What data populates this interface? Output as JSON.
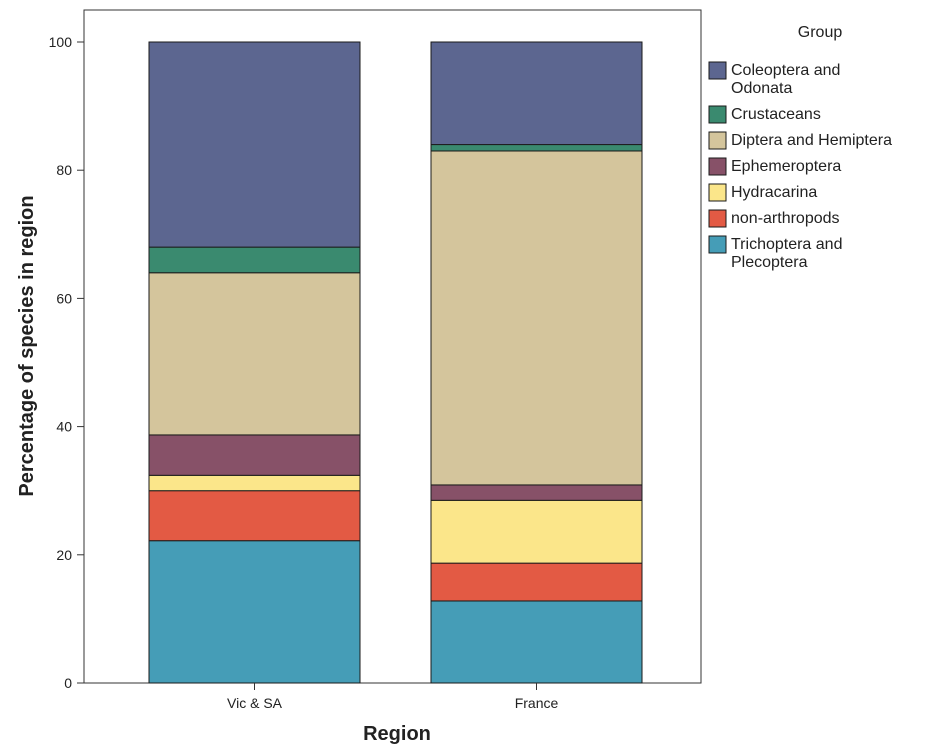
{
  "chart_data": {
    "type": "bar",
    "stacked": true,
    "categories": [
      "Vic & SA",
      "France"
    ],
    "xlabel": "Region",
    "ylabel": "Percentage of species in region",
    "ylim": [
      0,
      100
    ],
    "yticks": [
      0,
      20,
      40,
      60,
      80,
      100
    ],
    "grid": false,
    "legend": {
      "title": "Group",
      "position": "right"
    },
    "series": [
      {
        "name": "Trichoptera and Plecoptera",
        "label_lines": [
          "Trichoptera and",
          "Plecoptera"
        ],
        "color": "#459db7",
        "values": [
          22.2,
          12.8
        ]
      },
      {
        "name": "non-arthropods",
        "label_lines": [
          "non-arthropods"
        ],
        "color": "#e35a44",
        "values": [
          7.8,
          5.9
        ]
      },
      {
        "name": "Hydracarina",
        "label_lines": [
          "Hydracarina"
        ],
        "color": "#fbe68a",
        "values": [
          2.4,
          9.8
        ]
      },
      {
        "name": "Ephemeroptera",
        "label_lines": [
          "Ephemeroptera"
        ],
        "color": "#875168",
        "values": [
          6.3,
          2.4
        ]
      },
      {
        "name": "Diptera and Hemiptera",
        "label_lines": [
          "Diptera and Hemiptera"
        ],
        "color": "#d4c59c",
        "values": [
          25.3,
          52.1
        ]
      },
      {
        "name": "Crustaceans",
        "label_lines": [
          "Crustaceans"
        ],
        "color": "#3a8a6f",
        "values": [
          4.0,
          1.0
        ]
      },
      {
        "name": "Coleoptera and Odonata",
        "label_lines": [
          "Coleoptera and",
          "Odonata"
        ],
        "color": "#5c6690",
        "values": [
          32.0,
          16.0
        ]
      }
    ],
    "legend_order": [
      "Coleoptera and Odonata",
      "Crustaceans",
      "Diptera and Hemiptera",
      "Ephemeroptera",
      "Hydracarina",
      "non-arthropods",
      "Trichoptera and Plecoptera"
    ]
  }
}
